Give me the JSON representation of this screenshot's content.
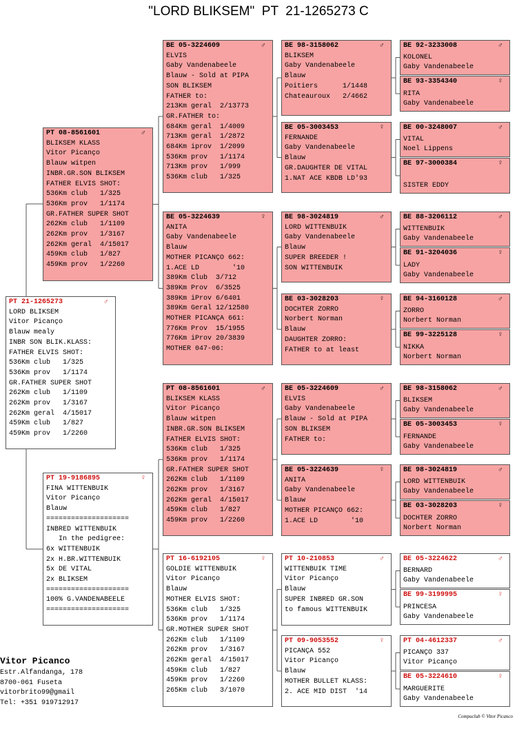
{
  "title": "\"LORD BLIKSEM\"  PT  21-1265273 C",
  "boxes": [
    {
      "ring": "PT  21-1265273",
      "sex": "♂",
      "color": "#ffffff",
      "lines": [
        "LORD BLIKSEM",
        "Vitor Picanço",
        "Blauw mealy",
        "INBR SON BLIK.KLASS:",
        "FATHER ELVIS SHOT:",
        "536Km club   1/325",
        "536Km prov   1/1174",
        "GR.FATHER SUPER SHOT",
        "262Km club   1/1109",
        "262Km prov   1/3167",
        "262Km geral  4/15017",
        "459Km club   1/827",
        "459Km prov   1/2260"
      ]
    },
    {
      "ring": "PT  08-8561601",
      "sex": "♂",
      "color": "#f7a3a3",
      "lines": [
        "BLIKSEM KLASS",
        "Vitor Picanço",
        "Blauw witpen",
        "INBR.GR.SON BLIKSEM",
        "FATHER ELVIS SHOT:",
        "536Km club   1/325",
        "536Km prov   1/1174",
        "GR.FATHER SUPER SHOT",
        "262Km club   1/1109",
        "262Km prov   1/3167",
        "262Km geral  4/15017",
        "459Km club   1/827",
        "459Km prov   1/2260"
      ]
    },
    {
      "ring": "PT  19-9186895",
      "sex": "♀",
      "color": "#ffffff",
      "lines": [
        "FINA WITTENBUIK",
        "Vitor Picanço",
        "Blauw",
        "====================",
        "INBRED WITTENBUIK",
        "   In the pedigree:",
        "6x WITTENBUIK",
        "2x H.BR.WITTENBUIK",
        "5x DE VITAL",
        "2x BLIKSEM",
        "====================",
        "100% G.VANDENABEELE",
        "===================="
      ]
    },
    {
      "ring": "BE  05-3224609",
      "sex": "♂",
      "color": "#f7a3a3",
      "lines": [
        "ELVIS",
        "Gaby Vandenabeele",
        "Blauw - Sold at PIPA",
        "SON BLIKSEM",
        "FATHER to:",
        "213Km geral  2/13773",
        "GR.FATHER to:",
        "684Km geral  1/4009",
        "713Km geral  1/2872",
        "684Km iprov  1/2099",
        "536Km prov   1/1174",
        "713Km prov   1/999",
        "536Km club   1/325"
      ]
    },
    {
      "ring": "BE  05-3224639",
      "sex": "♀",
      "color": "#f7a3a3",
      "lines": [
        "ANITA",
        "Gaby Vandenabeele",
        "Blauw",
        "MOTHER PICANÇO 662:",
        "1.ACE LD        '10",
        "389Km Club  3/712",
        "389Km Prov  6/3525",
        "389Km iProv 6/6401",
        "389Km Geral 12/12580",
        "MOTHER PICANÇA 661:",
        "776Km Prov  15/1955",
        "776Km iProv 20/3839",
        "MOTHER 047-06:"
      ]
    },
    {
      "ring": "PT  08-8561601",
      "sex": "♂",
      "color": "#f7a3a3",
      "lines": [
        "BLIKSEM KLASS",
        "Vitor Picanço",
        "Blauw witpen",
        "INBR.GR.SON BLIKSEM",
        "FATHER ELVIS SHOT:",
        "536Km club   1/325",
        "536Km prov   1/1174",
        "GR.FATHER SUPER SHOT",
        "262Km club   1/1109",
        "262Km prov   1/3167",
        "262Km geral  4/15017",
        "459Km club   1/827",
        "459Km prov   1/2260"
      ]
    },
    {
      "ring": "PT  16-6192105",
      "sex": "♀",
      "color": "#ffffff",
      "lines": [
        "GOLDIE WITTENBUIK",
        "Vitor Picanço",
        "Blauw",
        "MOTHER ELVIS SHOT:",
        "536Km club   1/325",
        "536Km prov   1/1174",
        "GR.MOTHER SUPER SHOT",
        "262Km club   1/1109",
        "262Km prov   1/3167",
        "262Km geral  4/15017",
        "459Km club   1/827",
        "459Km prov   1/2260",
        "265Km club   3/1070"
      ]
    },
    {
      "ring": "BE  98-3158062",
      "sex": "♂",
      "color": "#f7a3a3",
      "lines": [
        "BLIKSEM",
        "Gaby Vandenabeele",
        "Blauw",
        "Poitiers      1/1448",
        "Chateauroux   2/4662"
      ]
    },
    {
      "ring": "BE  05-3003453",
      "sex": "♀",
      "color": "#f7a3a3",
      "lines": [
        "FERNANDE",
        "Gaby Vandenabeele",
        "Blauw",
        "GR.DAUGHTER DE VITAL",
        "1.NAT ACE KBDB LD'93"
      ]
    },
    {
      "ring": "BE  98-3024819",
      "sex": "♂",
      "color": "#f7a3a3",
      "lines": [
        "LORD WITTENBUIK",
        "Gaby Vandenabeele",
        "Blauw",
        "SUPER BREEDER !",
        "SON WITTENBUIK"
      ]
    },
    {
      "ring": "BE  03-3028203",
      "sex": "♀",
      "color": "#f7a3a3",
      "lines": [
        "DOCHTER ZORRO",
        "Norbert Norman",
        "Blauw",
        "DAUGHTER ZORRO:",
        "FATHER to at least"
      ]
    },
    {
      "ring": "BE  05-3224609",
      "sex": "♂",
      "color": "#f7a3a3",
      "lines": [
        "ELVIS",
        "Gaby Vandenabeele",
        "Blauw - Sold at PIPA",
        "SON BLIKSEM",
        "FATHER to:"
      ]
    },
    {
      "ring": "BE  05-3224639",
      "sex": "♀",
      "color": "#f7a3a3",
      "lines": [
        "ANITA",
        "Gaby Vandenabeele",
        "Blauw",
        "MOTHER PICANÇO 662:",
        "1.ACE LD        '10"
      ]
    },
    {
      "ring": "PT  10-210853",
      "sex": "♂",
      "color": "#ffffff",
      "lines": [
        "WITTENBUIK TIME",
        "Vitor Picanço",
        "Blauw",
        "SUPER INBRED GR.SON",
        "to famous WITTENBUIK"
      ]
    },
    {
      "ring": "PT  09-9053552",
      "sex": "♀",
      "color": "#ffffff",
      "lines": [
        "PICANÇA 552",
        "Vitor Picanço",
        "Blauw",
        "MOTHER BULLET KLASS:",
        "2. ACE MID DIST  '14"
      ]
    },
    {
      "ring": "BE  92-3233008",
      "sex": "♂",
      "color": "#f7a3a3",
      "lines": [
        "KOLONEL",
        "Gaby Vandenabeele"
      ]
    },
    {
      "ring": "BE  93-3354340",
      "sex": "♀",
      "color": "#f7a3a3",
      "lines": [
        "RITA",
        "Gaby Vandenabeele"
      ]
    },
    {
      "ring": "BE  00-3248007",
      "sex": "♂",
      "color": "#f7a3a3",
      "lines": [
        "VITAL",
        "Noel Lippens"
      ]
    },
    {
      "ring": "BE  97-3000384",
      "sex": "♀",
      "color": "#f7a3a3",
      "lines": [
        "SISTER EDDY"
      ]
    },
    {
      "ring": "BE  88-3206112",
      "sex": "♂",
      "color": "#f7a3a3",
      "lines": [
        "WITTENBUIK",
        "Gaby Vandenabeele"
      ]
    },
    {
      "ring": "BE  91-3204036",
      "sex": "♀",
      "color": "#f7a3a3",
      "lines": [
        "LADY",
        "Gaby Vandenabeele"
      ]
    },
    {
      "ring": "BE  94-3160128",
      "sex": "♂",
      "color": "#f7a3a3",
      "lines": [
        "ZORRO",
        "Norbert Norman"
      ]
    },
    {
      "ring": "BE  99-3225128",
      "sex": "♀",
      "color": "#f7a3a3",
      "lines": [
        "NIKKA",
        "Norbert Norman"
      ]
    },
    {
      "ring": "BE  98-3158062",
      "sex": "♂",
      "color": "#f7a3a3",
      "lines": [
        "BLIKSEM",
        "Gaby Vandenabeele"
      ]
    },
    {
      "ring": "BE  05-3003453",
      "sex": "♀",
      "color": "#f7a3a3",
      "lines": [
        "FERNANDE",
        "Gaby Vandenabeele"
      ]
    },
    {
      "ring": "BE  98-3024819",
      "sex": "♂",
      "color": "#f7a3a3",
      "lines": [
        "LORD WITTENBUIK",
        "Gaby Vandenabeele"
      ]
    },
    {
      "ring": "BE  03-3028203",
      "sex": "♀",
      "color": "#f7a3a3",
      "lines": [
        "DOCHTER ZORRO",
        "Norbert Norman"
      ]
    },
    {
      "ring": "BE  05-3224622",
      "sex": "♂",
      "color": "#ffffff",
      "lines": [
        "BERNARD",
        "Gaby Vandenabeele"
      ]
    },
    {
      "ring": "BE  99-3199995",
      "sex": "♀",
      "color": "#ffffff",
      "lines": [
        "PRINCESA",
        "Gaby Vandenabeele"
      ]
    },
    {
      "ring": "PT  04-4612337",
      "sex": "♂",
      "color": "#ffffff",
      "lines": [
        "PICANÇO 337",
        "Vitor Picanço"
      ]
    },
    {
      "ring": "BE  05-3224610",
      "sex": "♀",
      "color": "#ffffff",
      "lines": [
        "MARGUERITE",
        "Gaby Vandenabeele"
      ]
    }
  ],
  "owner": {
    "name": "Vitor Picanco",
    "lines": [
      "Estr.Alfandanga, 178",
      "8700-061 Fuseta",
      "vitorbrito99@gmail",
      "Tel: +351 919712917"
    ]
  },
  "footer": "Compuclub © Vitor Picanco"
}
